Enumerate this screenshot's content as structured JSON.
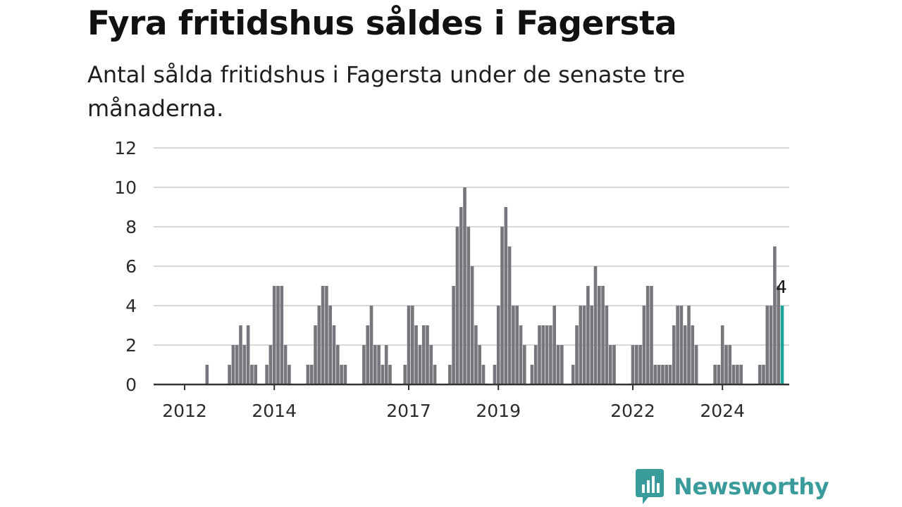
{
  "title": "Fyra fritidshus såldes i Fagersta",
  "subtitle": "Antal sålda fritidshus i Fagersta under de senaste tre månaderna.",
  "brand": {
    "name": "Newsworthy",
    "color": "#3a9b9b"
  },
  "colors": {
    "bar": "#77767c",
    "highlight": "#1aa39b",
    "grid": "#d9d9d9",
    "axis": "#333333"
  },
  "chart_data": {
    "type": "bar",
    "x_axis": {
      "type": "date",
      "ticks": [
        "2012",
        "2014",
        "2017",
        "2019",
        "2022",
        "2024"
      ]
    },
    "y_axis": {
      "ylim": [
        0,
        12
      ],
      "ticks": [
        0,
        2,
        4,
        6,
        8,
        10,
        12
      ]
    },
    "grid": true,
    "annotations": [
      {
        "label": "4",
        "target": "last"
      }
    ],
    "series": [
      {
        "values": [
          [
            "2011-11",
            0
          ],
          [
            "2011-12",
            0
          ],
          [
            "2012-01",
            0
          ],
          [
            "2012-02",
            0
          ],
          [
            "2012-03",
            0
          ],
          [
            "2012-04",
            0
          ],
          [
            "2012-05",
            0
          ],
          [
            "2012-06",
            0
          ],
          [
            "2012-07",
            1
          ],
          [
            "2012-08",
            0
          ],
          [
            "2012-09",
            0
          ],
          [
            "2012-10",
            0
          ],
          [
            "2012-11",
            0
          ],
          [
            "2012-12",
            0
          ],
          [
            "2013-01",
            1
          ],
          [
            "2013-02",
            2
          ],
          [
            "2013-03",
            2
          ],
          [
            "2013-04",
            3
          ],
          [
            "2013-05",
            2
          ],
          [
            "2013-06",
            3
          ],
          [
            "2013-07",
            1
          ],
          [
            "2013-08",
            1
          ],
          [
            "2013-09",
            0
          ],
          [
            "2013-10",
            0
          ],
          [
            "2013-11",
            1
          ],
          [
            "2013-12",
            2
          ],
          [
            "2014-01",
            5
          ],
          [
            "2014-02",
            5
          ],
          [
            "2014-03",
            5
          ],
          [
            "2014-04",
            2
          ],
          [
            "2014-05",
            1
          ],
          [
            "2014-06",
            0
          ],
          [
            "2014-07",
            0
          ],
          [
            "2014-08",
            0
          ],
          [
            "2014-09",
            0
          ],
          [
            "2014-10",
            1
          ],
          [
            "2014-11",
            1
          ],
          [
            "2014-12",
            3
          ],
          [
            "2015-01",
            4
          ],
          [
            "2015-02",
            5
          ],
          [
            "2015-03",
            5
          ],
          [
            "2015-04",
            4
          ],
          [
            "2015-05",
            3
          ],
          [
            "2015-06",
            2
          ],
          [
            "2015-07",
            1
          ],
          [
            "2015-08",
            1
          ],
          [
            "2015-09",
            0
          ],
          [
            "2015-10",
            0
          ],
          [
            "2015-11",
            0
          ],
          [
            "2015-12",
            0
          ],
          [
            "2016-01",
            2
          ],
          [
            "2016-02",
            3
          ],
          [
            "2016-03",
            4
          ],
          [
            "2016-04",
            2
          ],
          [
            "2016-05",
            2
          ],
          [
            "2016-06",
            1
          ],
          [
            "2016-07",
            2
          ],
          [
            "2016-08",
            1
          ],
          [
            "2016-09",
            0
          ],
          [
            "2016-10",
            0
          ],
          [
            "2016-11",
            0
          ],
          [
            "2016-12",
            1
          ],
          [
            "2017-01",
            4
          ],
          [
            "2017-02",
            4
          ],
          [
            "2017-03",
            3
          ],
          [
            "2017-04",
            2
          ],
          [
            "2017-05",
            3
          ],
          [
            "2017-06",
            3
          ],
          [
            "2017-07",
            2
          ],
          [
            "2017-08",
            1
          ],
          [
            "2017-09",
            0
          ],
          [
            "2017-10",
            0
          ],
          [
            "2017-11",
            0
          ],
          [
            "2017-12",
            1
          ],
          [
            "2018-01",
            5
          ],
          [
            "2018-02",
            8
          ],
          [
            "2018-03",
            9
          ],
          [
            "2018-04",
            10
          ],
          [
            "2018-05",
            8
          ],
          [
            "2018-06",
            6
          ],
          [
            "2018-07",
            3
          ],
          [
            "2018-08",
            2
          ],
          [
            "2018-09",
            1
          ],
          [
            "2018-10",
            0
          ],
          [
            "2018-11",
            0
          ],
          [
            "2018-12",
            1
          ],
          [
            "2019-01",
            4
          ],
          [
            "2019-02",
            8
          ],
          [
            "2019-03",
            9
          ],
          [
            "2019-04",
            7
          ],
          [
            "2019-05",
            4
          ],
          [
            "2019-06",
            4
          ],
          [
            "2019-07",
            3
          ],
          [
            "2019-08",
            2
          ],
          [
            "2019-09",
            0
          ],
          [
            "2019-10",
            1
          ],
          [
            "2019-11",
            2
          ],
          [
            "2019-12",
            3
          ],
          [
            "2020-01",
            3
          ],
          [
            "2020-02",
            3
          ],
          [
            "2020-03",
            3
          ],
          [
            "2020-04",
            4
          ],
          [
            "2020-05",
            2
          ],
          [
            "2020-06",
            2
          ],
          [
            "2020-07",
            0
          ],
          [
            "2020-08",
            0
          ],
          [
            "2020-09",
            1
          ],
          [
            "2020-10",
            3
          ],
          [
            "2020-11",
            4
          ],
          [
            "2020-12",
            4
          ],
          [
            "2021-01",
            5
          ],
          [
            "2021-02",
            4
          ],
          [
            "2021-03",
            6
          ],
          [
            "2021-04",
            5
          ],
          [
            "2021-05",
            5
          ],
          [
            "2021-06",
            4
          ],
          [
            "2021-07",
            2
          ],
          [
            "2021-08",
            2
          ],
          [
            "2021-09",
            0
          ],
          [
            "2021-10",
            0
          ],
          [
            "2021-11",
            0
          ],
          [
            "2021-12",
            0
          ],
          [
            "2022-01",
            2
          ],
          [
            "2022-02",
            2
          ],
          [
            "2022-03",
            2
          ],
          [
            "2022-04",
            4
          ],
          [
            "2022-05",
            5
          ],
          [
            "2022-06",
            5
          ],
          [
            "2022-07",
            1
          ],
          [
            "2022-08",
            1
          ],
          [
            "2022-09",
            1
          ],
          [
            "2022-10",
            1
          ],
          [
            "2022-11",
            1
          ],
          [
            "2022-12",
            3
          ],
          [
            "2023-01",
            4
          ],
          [
            "2023-02",
            4
          ],
          [
            "2023-03",
            3
          ],
          [
            "2023-04",
            4
          ],
          [
            "2023-05",
            3
          ],
          [
            "2023-06",
            2
          ],
          [
            "2023-07",
            0
          ],
          [
            "2023-08",
            0
          ],
          [
            "2023-09",
            0
          ],
          [
            "2023-10",
            0
          ],
          [
            "2023-11",
            1
          ],
          [
            "2023-12",
            1
          ],
          [
            "2024-01",
            3
          ],
          [
            "2024-02",
            2
          ],
          [
            "2024-03",
            2
          ],
          [
            "2024-04",
            1
          ],
          [
            "2024-05",
            1
          ],
          [
            "2024-06",
            1
          ],
          [
            "2024-07",
            0
          ],
          [
            "2024-08",
            0
          ],
          [
            "2024-09",
            0
          ],
          [
            "2024-10",
            0
          ],
          [
            "2024-11",
            1
          ],
          [
            "2024-12",
            1
          ],
          [
            "2025-01",
            4
          ],
          [
            "2025-02",
            4
          ],
          [
            "2025-03",
            7
          ],
          [
            "2025-04",
            5
          ],
          [
            "2025-05",
            4
          ]
        ]
      }
    ]
  }
}
